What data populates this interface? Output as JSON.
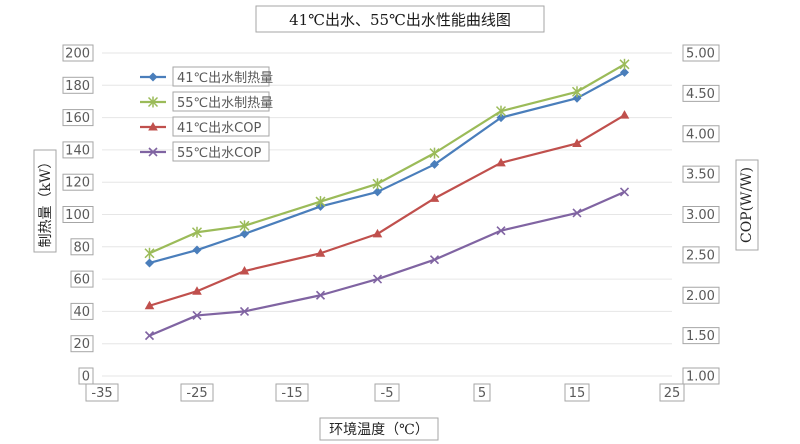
{
  "chart_data": {
    "type": "line",
    "title": "41℃出水、55℃出水性能曲线图",
    "xlabel": "环境温度（℃）",
    "ylabel": "制热量（kW）",
    "y2label": "COP(W/W)",
    "xlim": [
      -35,
      25
    ],
    "ylim": [
      0,
      200
    ],
    "y2lim": [
      1.0,
      5.0
    ],
    "xticks": [
      "-35",
      "-25",
      "-15",
      "-5",
      "5",
      "15",
      "25"
    ],
    "yticks": [
      "0",
      "20",
      "40",
      "60",
      "80",
      "100",
      "120",
      "140",
      "160",
      "180",
      "200"
    ],
    "y2ticks": [
      "1.00",
      "1.50",
      "2.00",
      "2.50",
      "3.00",
      "3.50",
      "4.00",
      "4.50",
      "5.00"
    ],
    "grid": "horizontal",
    "legend_position": "top-left",
    "series": [
      {
        "name": "41℃出水制热量",
        "axis": "left",
        "marker": "diamond",
        "color": "#4a7ebb",
        "x": [
          -30,
          -25,
          -20,
          -12,
          -6,
          0,
          7,
          15,
          20
        ],
        "values": [
          70,
          78,
          88,
          105,
          114,
          131,
          160,
          172,
          188
        ]
      },
      {
        "name": "55℃出水制热量",
        "axis": "left",
        "marker": "star",
        "color": "#9bbb59",
        "x": [
          -30,
          -25,
          -20,
          -12,
          -6,
          0,
          7,
          15,
          20
        ],
        "values": [
          76,
          89,
          93,
          108,
          119,
          138,
          164,
          176,
          193
        ]
      },
      {
        "name": "41℃出水COP",
        "axis": "right",
        "marker": "triangle",
        "color": "#c0504d",
        "x": [
          -30,
          -25,
          -20,
          -12,
          -6,
          0,
          7,
          15,
          20
        ],
        "values": [
          1.87,
          2.05,
          2.3,
          2.52,
          2.76,
          3.2,
          3.64,
          3.88,
          4.23
        ]
      },
      {
        "name": "55℃出水COP",
        "axis": "right",
        "marker": "x",
        "color": "#8064a2",
        "x": [
          -30,
          -25,
          -20,
          -12,
          -6,
          0,
          7,
          15,
          20
        ],
        "values": [
          1.5,
          1.75,
          1.8,
          2.0,
          2.2,
          2.44,
          2.8,
          3.02,
          3.28
        ]
      }
    ]
  }
}
